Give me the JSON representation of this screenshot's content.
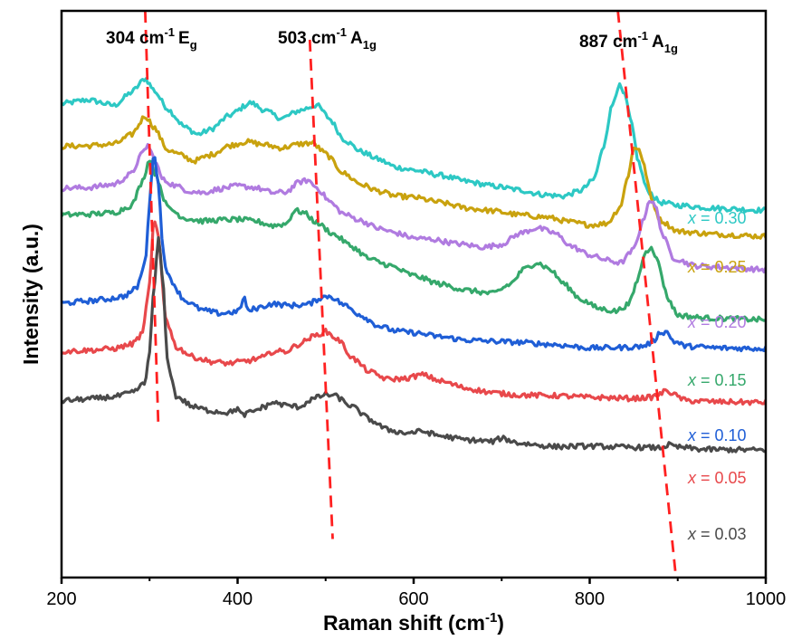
{
  "chart_data": {
    "type": "line",
    "xlabel": "Raman shift (cm<sup>-1</sup>)",
    "ylabel": "Intensity (a.u.)",
    "xlim": [
      200,
      1000
    ],
    "x_ticks": [
      "200",
      "400",
      "600",
      "800",
      "1000"
    ],
    "y_ticks_shown": false,
    "legend": "inline labels at right, one per curve",
    "series_label_prefix": "x",
    "annotations": [
      {
        "text": "304 cm",
        "sup": "-1",
        "mode": "E",
        "sub": "g",
        "line_start": [
          295,
          100.0
        ],
        "line_end": [
          310,
          26.6
        ],
        "line_color": "#ff2020"
      },
      {
        "text": "503 cm",
        "sup": "-1",
        "mode": "A",
        "sub": "1g",
        "line_start": [
          482,
          94.9
        ],
        "line_end": [
          508,
          6.8
        ],
        "line_color": "#ff2020"
      },
      {
        "text": "887 cm",
        "sup": "-1",
        "mode": "A",
        "sub": "1g",
        "line_start": [
          832,
          100.0
        ],
        "line_end": [
          898,
          0.0
        ],
        "line_color": "#ff2020"
      }
    ],
    "series": [
      {
        "name": "0.30",
        "label": "= 0.30",
        "color": "#2dc8c4",
        "points": [
          [
            200,
            83.6
          ],
          [
            230,
            84.3
          ],
          [
            260,
            83.3
          ],
          [
            280,
            85.7
          ],
          [
            295,
            88.1
          ],
          [
            305,
            86.0
          ],
          [
            320,
            82.8
          ],
          [
            340,
            79.5
          ],
          [
            355,
            78.2
          ],
          [
            370,
            79.1
          ],
          [
            390,
            81.5
          ],
          [
            415,
            83.8
          ],
          [
            430,
            82.5
          ],
          [
            450,
            81.0
          ],
          [
            470,
            82.4
          ],
          [
            490,
            83.4
          ],
          [
            505,
            80.9
          ],
          [
            520,
            77.4
          ],
          [
            540,
            75.2
          ],
          [
            560,
            73.8
          ],
          [
            580,
            72.4
          ],
          [
            600,
            71.9
          ],
          [
            630,
            71.0
          ],
          [
            660,
            69.9
          ],
          [
            690,
            69.1
          ],
          [
            720,
            68.4
          ],
          [
            745,
            67.6
          ],
          [
            770,
            67.3
          ],
          [
            790,
            68.3
          ],
          [
            805,
            70.3
          ],
          [
            815,
            75.6
          ],
          [
            825,
            83.1
          ],
          [
            833,
            86.9
          ],
          [
            840,
            85.0
          ],
          [
            848,
            79.7
          ],
          [
            855,
            73.5
          ],
          [
            865,
            68.4
          ],
          [
            880,
            66.2
          ],
          [
            900,
            65.7
          ],
          [
            940,
            65.2
          ],
          [
            1000,
            64.8
          ]
        ]
      },
      {
        "name": "0.25",
        "label": "= 0.25",
        "color": "#c9a20e",
        "points": [
          [
            200,
            76.1
          ],
          [
            230,
            76.2
          ],
          [
            260,
            76.5
          ],
          [
            280,
            78.2
          ],
          [
            295,
            81.5
          ],
          [
            305,
            79.5
          ],
          [
            320,
            75.5
          ],
          [
            335,
            74.6
          ],
          [
            350,
            73.5
          ],
          [
            370,
            74.6
          ],
          [
            390,
            76.2
          ],
          [
            410,
            76.9
          ],
          [
            430,
            76.4
          ],
          [
            450,
            75.8
          ],
          [
            470,
            76.5
          ],
          [
            485,
            76.7
          ],
          [
            500,
            74.8
          ],
          [
            520,
            71.4
          ],
          [
            540,
            69.4
          ],
          [
            560,
            68.2
          ],
          [
            580,
            67.3
          ],
          [
            600,
            67.1
          ],
          [
            630,
            66.2
          ],
          [
            660,
            65.2
          ],
          [
            690,
            64.7
          ],
          [
            720,
            64.0
          ],
          [
            750,
            63.6
          ],
          [
            780,
            62.7
          ],
          [
            800,
            62.2
          ],
          [
            820,
            62.5
          ],
          [
            835,
            65.5
          ],
          [
            843,
            70.6
          ],
          [
            850,
            75.7
          ],
          [
            856,
            75.8
          ],
          [
            862,
            72.5
          ],
          [
            870,
            66.8
          ],
          [
            880,
            63.1
          ],
          [
            900,
            61.1
          ],
          [
            940,
            60.6
          ],
          [
            1000,
            60.2
          ]
        ]
      },
      {
        "name": "0.20",
        "label": "= 0.20",
        "color": "#b07be0",
        "points": [
          [
            200,
            68.7
          ],
          [
            230,
            68.8
          ],
          [
            260,
            69.4
          ],
          [
            280,
            71.3
          ],
          [
            290,
            74.5
          ],
          [
            298,
            76.3
          ],
          [
            305,
            74.0
          ],
          [
            315,
            70.2
          ],
          [
            330,
            69.1
          ],
          [
            345,
            68.2
          ],
          [
            360,
            67.9
          ],
          [
            380,
            68.6
          ],
          [
            400,
            69.1
          ],
          [
            420,
            68.8
          ],
          [
            440,
            67.9
          ],
          [
            455,
            68.0
          ],
          [
            470,
            69.8
          ],
          [
            480,
            70.1
          ],
          [
            490,
            68.8
          ],
          [
            505,
            66.3
          ],
          [
            520,
            64.2
          ],
          [
            540,
            63.0
          ],
          [
            560,
            61.6
          ],
          [
            580,
            60.8
          ],
          [
            600,
            59.9
          ],
          [
            620,
            59.7
          ],
          [
            650,
            58.9
          ],
          [
            680,
            58.3
          ],
          [
            700,
            58.8
          ],
          [
            720,
            60.7
          ],
          [
            740,
            61.7
          ],
          [
            760,
            60.8
          ],
          [
            780,
            58.4
          ],
          [
            800,
            56.9
          ],
          [
            820,
            56.0
          ],
          [
            835,
            55.5
          ],
          [
            850,
            57.9
          ],
          [
            860,
            62.7
          ],
          [
            868,
            66.7
          ],
          [
            875,
            65.4
          ],
          [
            883,
            60.4
          ],
          [
            895,
            56.4
          ],
          [
            920,
            55.0
          ],
          [
            960,
            54.7
          ],
          [
            1000,
            54.3
          ]
        ]
      },
      {
        "name": "0.15",
        "label": "= 0.15",
        "color": "#35a86b",
        "points": [
          [
            200,
            64.0
          ],
          [
            230,
            64.1
          ],
          [
            260,
            64.4
          ],
          [
            280,
            65.7
          ],
          [
            292,
            70.0
          ],
          [
            300,
            73.9
          ],
          [
            308,
            70.7
          ],
          [
            320,
            65.4
          ],
          [
            340,
            63.4
          ],
          [
            360,
            62.9
          ],
          [
            380,
            63.1
          ],
          [
            400,
            63.2
          ],
          [
            420,
            62.9
          ],
          [
            440,
            62.1
          ],
          [
            455,
            62.4
          ],
          [
            465,
            64.8
          ],
          [
            475,
            64.4
          ],
          [
            490,
            62.6
          ],
          [
            510,
            60.5
          ],
          [
            530,
            58.4
          ],
          [
            550,
            56.2
          ],
          [
            570,
            55.2
          ],
          [
            600,
            53.3
          ],
          [
            630,
            51.8
          ],
          [
            660,
            50.7
          ],
          [
            690,
            50.1
          ],
          [
            710,
            51.8
          ],
          [
            725,
            54.4
          ],
          [
            740,
            55.6
          ],
          [
            755,
            54.4
          ],
          [
            770,
            51.9
          ],
          [
            790,
            49.1
          ],
          [
            810,
            47.5
          ],
          [
            830,
            47.0
          ],
          [
            845,
            48.3
          ],
          [
            855,
            52.8
          ],
          [
            862,
            57.0
          ],
          [
            870,
            58.5
          ],
          [
            878,
            55.5
          ],
          [
            888,
            49.5
          ],
          [
            900,
            46.3
          ],
          [
            930,
            45.8
          ],
          [
            1000,
            45.5
          ]
        ]
      },
      {
        "name": "0.10",
        "label": "= 0.10",
        "color": "#1f5ed6",
        "points": [
          [
            200,
            48.4
          ],
          [
            230,
            48.8
          ],
          [
            250,
            49.1
          ],
          [
            270,
            49.6
          ],
          [
            285,
            51.0
          ],
          [
            295,
            55.5
          ],
          [
            300,
            66.3
          ],
          [
            305,
            75.5
          ],
          [
            310,
            69.3
          ],
          [
            315,
            58.3
          ],
          [
            320,
            53.4
          ],
          [
            340,
            48.9
          ],
          [
            360,
            47.2
          ],
          [
            380,
            46.6
          ],
          [
            400,
            46.9
          ],
          [
            408,
            49.3
          ],
          [
            412,
            46.9
          ],
          [
            420,
            47.5
          ],
          [
            440,
            48.3
          ],
          [
            460,
            48.0
          ],
          [
            480,
            48.2
          ],
          [
            495,
            49.4
          ],
          [
            505,
            49.7
          ],
          [
            520,
            48.2
          ],
          [
            540,
            46.3
          ],
          [
            560,
            44.4
          ],
          [
            580,
            43.5
          ],
          [
            600,
            43.2
          ],
          [
            630,
            42.5
          ],
          [
            660,
            41.9
          ],
          [
            690,
            41.7
          ],
          [
            720,
            41.5
          ],
          [
            760,
            41.1
          ],
          [
            800,
            40.5
          ],
          [
            840,
            40.6
          ],
          [
            860,
            40.8
          ],
          [
            872,
            41.6
          ],
          [
            880,
            43.3
          ],
          [
            888,
            43.3
          ],
          [
            895,
            41.7
          ],
          [
            910,
            40.8
          ],
          [
            950,
            40.5
          ],
          [
            1000,
            40.4
          ]
        ]
      },
      {
        "name": "0.05",
        "label": "= 0.05",
        "color": "#e8484b",
        "points": [
          [
            200,
            39.9
          ],
          [
            230,
            40.1
          ],
          [
            260,
            40.4
          ],
          [
            280,
            41.2
          ],
          [
            292,
            43.0
          ],
          [
            300,
            51.9
          ],
          [
            305,
            63.2
          ],
          [
            310,
            60.1
          ],
          [
            318,
            46.1
          ],
          [
            330,
            40.7
          ],
          [
            350,
            38.9
          ],
          [
            370,
            38.1
          ],
          [
            390,
            37.8
          ],
          [
            410,
            38.2
          ],
          [
            430,
            38.9
          ],
          [
            440,
            39.9
          ],
          [
            455,
            39.9
          ],
          [
            470,
            41.2
          ],
          [
            485,
            42.5
          ],
          [
            500,
            43.4
          ],
          [
            515,
            41.9
          ],
          [
            530,
            38.8
          ],
          [
            550,
            36.3
          ],
          [
            570,
            35.0
          ],
          [
            590,
            35.1
          ],
          [
            610,
            35.8
          ],
          [
            630,
            34.7
          ],
          [
            660,
            33.4
          ],
          [
            690,
            32.6
          ],
          [
            720,
            32.2
          ],
          [
            760,
            32.1
          ],
          [
            800,
            31.8
          ],
          [
            850,
            31.6
          ],
          [
            870,
            31.8
          ],
          [
            880,
            32.4
          ],
          [
            888,
            33.1
          ],
          [
            895,
            32.3
          ],
          [
            910,
            31.2
          ],
          [
            950,
            31.0
          ],
          [
            1000,
            30.9
          ]
        ]
      },
      {
        "name": "0.03",
        "label": "= 0.03",
        "color": "#4a4a4a",
        "points": [
          [
            200,
            31.2
          ],
          [
            230,
            31.5
          ],
          [
            260,
            31.9
          ],
          [
            280,
            32.6
          ],
          [
            295,
            34.3
          ],
          [
            300,
            40.2
          ],
          [
            305,
            50.9
          ],
          [
            310,
            59.8
          ],
          [
            315,
            52.7
          ],
          [
            320,
            38.5
          ],
          [
            330,
            32.0
          ],
          [
            350,
            30.1
          ],
          [
            370,
            29.4
          ],
          [
            390,
            29.1
          ],
          [
            400,
            29.8
          ],
          [
            405,
            28.6
          ],
          [
            415,
            29.2
          ],
          [
            430,
            30.1
          ],
          [
            440,
            30.9
          ],
          [
            455,
            30.4
          ],
          [
            470,
            30.1
          ],
          [
            485,
            31.5
          ],
          [
            500,
            32.3
          ],
          [
            510,
            32.1
          ],
          [
            530,
            30.2
          ],
          [
            550,
            27.9
          ],
          [
            570,
            26.1
          ],
          [
            590,
            25.5
          ],
          [
            610,
            25.8
          ],
          [
            630,
            25.0
          ],
          [
            660,
            24.3
          ],
          [
            690,
            24.0
          ],
          [
            700,
            24.6
          ],
          [
            720,
            23.7
          ],
          [
            760,
            23.1
          ],
          [
            800,
            23.2
          ],
          [
            840,
            23.0
          ],
          [
            880,
            22.9
          ],
          [
            890,
            23.4
          ],
          [
            900,
            23.0
          ],
          [
            930,
            22.6
          ],
          [
            1000,
            22.5
          ]
        ]
      }
    ]
  }
}
